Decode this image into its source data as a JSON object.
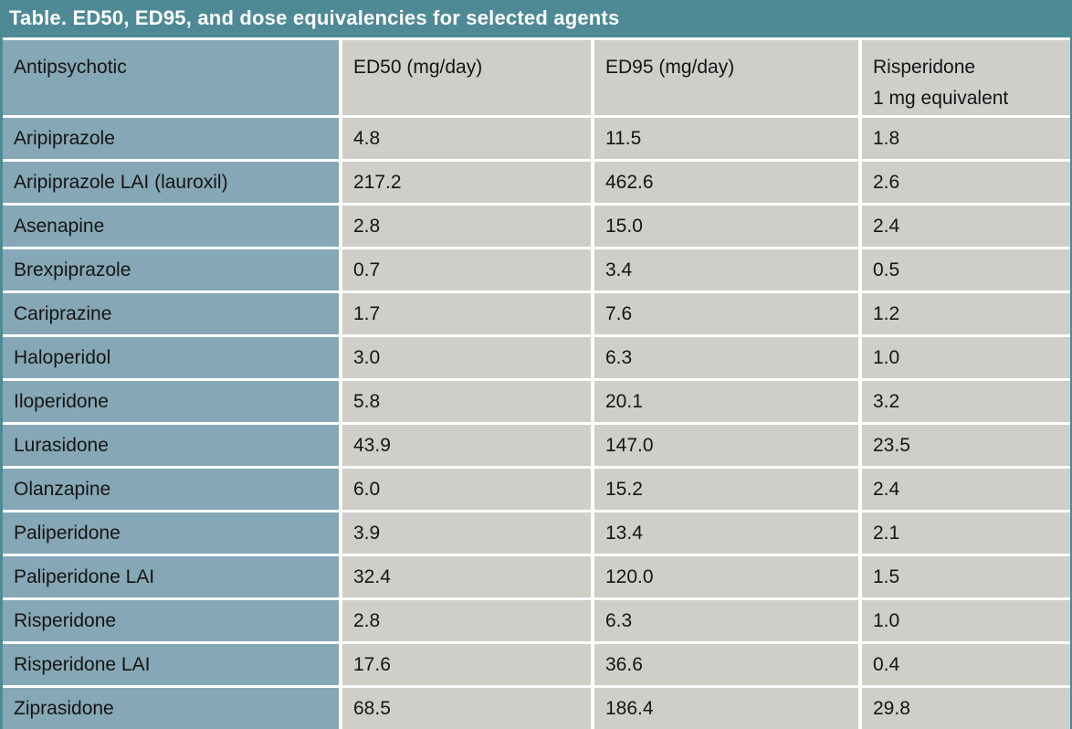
{
  "title_bar": {
    "text": "Table. ED50, ED95, and dose equivalencies for selected agents"
  },
  "header": {
    "antipsychotic": "Antipsychotic",
    "ed50": "ED50 (mg/day)",
    "ed95": "ED95 (mg/day)",
    "risperidone_line1": "Risperidone",
    "risperidone_line2": "1 mg equivalent"
  },
  "rows": [
    {
      "agent": "Aripiprazole",
      "ed50": "4.8",
      "ed95": "11.5",
      "req": "1.8"
    },
    {
      "agent": "Aripiprazole LAI (lauroxil)",
      "ed50": "217.2",
      "ed95": "462.6",
      "req": "2.6"
    },
    {
      "agent": "Asenapine",
      "ed50": "2.8",
      "ed95": "15.0",
      "req": "2.4"
    },
    {
      "agent": "Brexpiprazole",
      "ed50": "0.7",
      "ed95": "3.4",
      "req": "0.5"
    },
    {
      "agent": "Cariprazine",
      "ed50": "1.7",
      "ed95": "7.6",
      "req": "1.2"
    },
    {
      "agent": "Haloperidol",
      "ed50": "3.0",
      "ed95": "6.3",
      "req": "1.0"
    },
    {
      "agent": "Iloperidone",
      "ed50": "5.8",
      "ed95": "20.1",
      "req": "3.2"
    },
    {
      "agent": "Lurasidone",
      "ed50": "43.9",
      "ed95": "147.0",
      "req": "23.5"
    },
    {
      "agent": "Olanzapine",
      "ed50": "6.0",
      "ed95": "15.2",
      "req": "2.4"
    },
    {
      "agent": "Paliperidone",
      "ed50": "3.9",
      "ed95": "13.4",
      "req": "2.1"
    },
    {
      "agent": "Paliperidone LAI",
      "ed50": "32.4",
      "ed95": "120.0",
      "req": "1.5"
    },
    {
      "agent": "Risperidone",
      "ed50": "2.8",
      "ed95": "6.3",
      "req": "1.0"
    },
    {
      "agent": "Risperidone LAI",
      "ed50": "17.6",
      "ed95": "36.6",
      "req": "0.4"
    },
    {
      "agent": "Ziprasidone",
      "ed50": "68.5",
      "ed95": "186.4",
      "req": "29.8"
    }
  ],
  "colors": {
    "title_bar_bg": "#4e8a95",
    "title_text": "#ffffff",
    "agent_column_bg": "#86a7b5",
    "value_column_bg": "#cfcec9",
    "row_separator": "#ffffff",
    "cell_text": "#151515"
  },
  "chart_data": {
    "type": "table",
    "title": "Table. ED50, ED95, and dose equivalencies for selected agents",
    "columns": [
      "Antipsychotic",
      "ED50 (mg/day)",
      "ED95 (mg/day)",
      "Risperidone 1 mg equivalent"
    ],
    "rows": [
      [
        "Aripiprazole",
        4.8,
        11.5,
        1.8
      ],
      [
        "Aripiprazole LAI (lauroxil)",
        217.2,
        462.6,
        2.6
      ],
      [
        "Asenapine",
        2.8,
        15.0,
        2.4
      ],
      [
        "Brexpiprazole",
        0.7,
        3.4,
        0.5
      ],
      [
        "Cariprazine",
        1.7,
        7.6,
        1.2
      ],
      [
        "Haloperidol",
        3.0,
        6.3,
        1.0
      ],
      [
        "Iloperidone",
        5.8,
        20.1,
        3.2
      ],
      [
        "Lurasidone",
        43.9,
        147.0,
        23.5
      ],
      [
        "Olanzapine",
        6.0,
        15.2,
        2.4
      ],
      [
        "Paliperidone",
        3.9,
        13.4,
        2.1
      ],
      [
        "Paliperidone LAI",
        32.4,
        120.0,
        1.5
      ],
      [
        "Risperidone",
        2.8,
        6.3,
        1.0
      ],
      [
        "Risperidone LAI",
        17.6,
        36.6,
        0.4
      ],
      [
        "Ziprasidone",
        68.5,
        186.4,
        29.8
      ]
    ]
  }
}
